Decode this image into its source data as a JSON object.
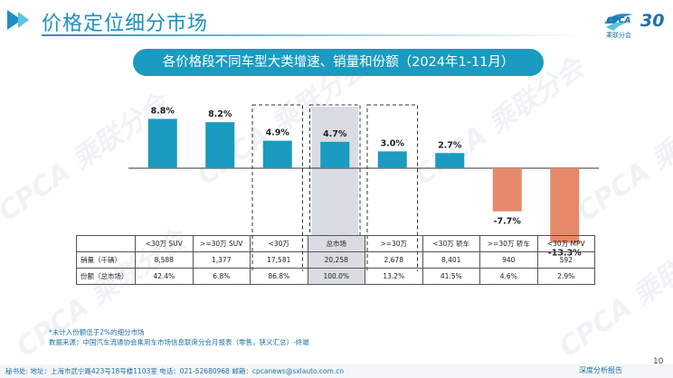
{
  "header": {
    "title": "价格定位细分市场",
    "logo_text": "CPCA",
    "logo_sub": "乘联分会",
    "badge": "30"
  },
  "banner": {
    "title": "各价格段不同车型大类增速、销量和份额（2024年1-11月）"
  },
  "watermark": {
    "text": "CPCA 乘联分会"
  },
  "colors": {
    "positive": "#1a9bbf",
    "negative": "#e6896b",
    "highlight_bg": "#d9dce2",
    "accent": "#1f8fbf"
  },
  "chart_data": {
    "type": "bar",
    "title": "各价格段不同车型大类增速、销量和份额（2024年1-11月）",
    "categories": [
      "<30万 SUV",
      ">=30万 SUV",
      "<30万",
      "总市场",
      ">=30万",
      "<30万 轿车",
      ">=30万 轿车",
      "<30万 MPV"
    ],
    "series": [
      {
        "values": [
          8.8,
          8.2,
          4.9,
          4.7,
          3.0,
          2.7,
          -7.7,
          -13.3
        ]
      }
    ],
    "value_labels": [
      "8.8%",
      "8.2%",
      "4.9%",
      "4.7%",
      "3.0%",
      "2.7%",
      "-7.7%",
      "-13.3%"
    ],
    "ylim": [
      -15,
      10
    ],
    "dashed_box_categories": [
      2,
      3,
      4
    ],
    "highlight_category": 3,
    "grid": false
  },
  "table": {
    "rows": [
      {
        "label": "销量（千辆）",
        "values": [
          "8,588",
          "1,377",
          "17,581",
          "20,258",
          "2,678",
          "8,401",
          "940",
          "592"
        ]
      },
      {
        "label": "份额（总市场）",
        "values": [
          "42.4%",
          "6.8%",
          "86.8%",
          "100.0%",
          "13.2%",
          "41.5%",
          "4.6%",
          "2.9%"
        ]
      }
    ]
  },
  "notes": {
    "note1": "*未计入份额低于2%的细分市场",
    "note2": "数据来源：中国汽车流通协会乘用车市场信息联席分会月报表（零售，狭义汇总）-终端"
  },
  "footer": {
    "contact": "秘书处:   地址：上海市武宁路423号18号楼1103室   电话：021-52680968   邮箱：cpcanews@sxlauto.com.cn",
    "right": "深度分析报告",
    "page": "10"
  }
}
